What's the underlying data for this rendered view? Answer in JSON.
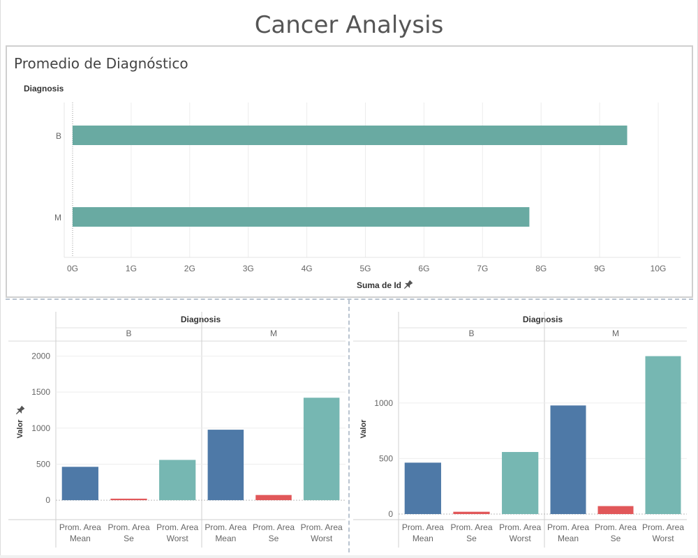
{
  "dashboard": {
    "title": "Cancer Analysis"
  },
  "colors": {
    "teal_bar": "#69aaa2",
    "blue": "#4e79a7",
    "red": "#e15759",
    "teal": "#76b7b2"
  },
  "chart_data": [
    {
      "type": "bar",
      "orientation": "horizontal",
      "title": "Promedio de Diagnóstico",
      "row_header": "Diagnosis",
      "categories": [
        "B",
        "M"
      ],
      "values": [
        9.47,
        7.8
      ],
      "xlabel": "Suma de Id",
      "xlim": [
        0,
        10
      ],
      "ticks": [
        "0G",
        "1G",
        "2G",
        "3G",
        "4G",
        "5G",
        "6G",
        "7G",
        "8G",
        "9G",
        "10G"
      ],
      "grid": true
    },
    {
      "type": "bar",
      "column_header": "Diagnosis",
      "groups": [
        "B",
        "M"
      ],
      "categories": [
        [
          "Prom. Area",
          "Mean"
        ],
        [
          "Prom. Area",
          "Se"
        ],
        [
          "Prom. Area",
          "Worst"
        ]
      ],
      "series": [
        {
          "values": [
            463,
            21,
            559
          ]
        },
        {
          "values": [
            978,
            72,
            1422
          ]
        }
      ],
      "ylabel": "Valor",
      "ylim": [
        -270,
        2150
      ],
      "yticks": [
        0,
        500,
        1000,
        1500,
        2000
      ],
      "grid": true
    },
    {
      "type": "bar",
      "column_header": "Diagnosis",
      "groups": [
        "B",
        "M"
      ],
      "categories": [
        [
          "Prom. Area",
          "Mean"
        ],
        [
          "Prom. Area",
          "Se"
        ],
        [
          "Prom. Area",
          "Worst"
        ]
      ],
      "series": [
        {
          "values": [
            463,
            21,
            559
          ]
        },
        {
          "values": [
            978,
            72,
            1422
          ]
        }
      ],
      "ylabel": "Valor",
      "ylim": [
        -50,
        1520
      ],
      "yticks": [
        0,
        500,
        1000
      ],
      "grid": true
    }
  ]
}
